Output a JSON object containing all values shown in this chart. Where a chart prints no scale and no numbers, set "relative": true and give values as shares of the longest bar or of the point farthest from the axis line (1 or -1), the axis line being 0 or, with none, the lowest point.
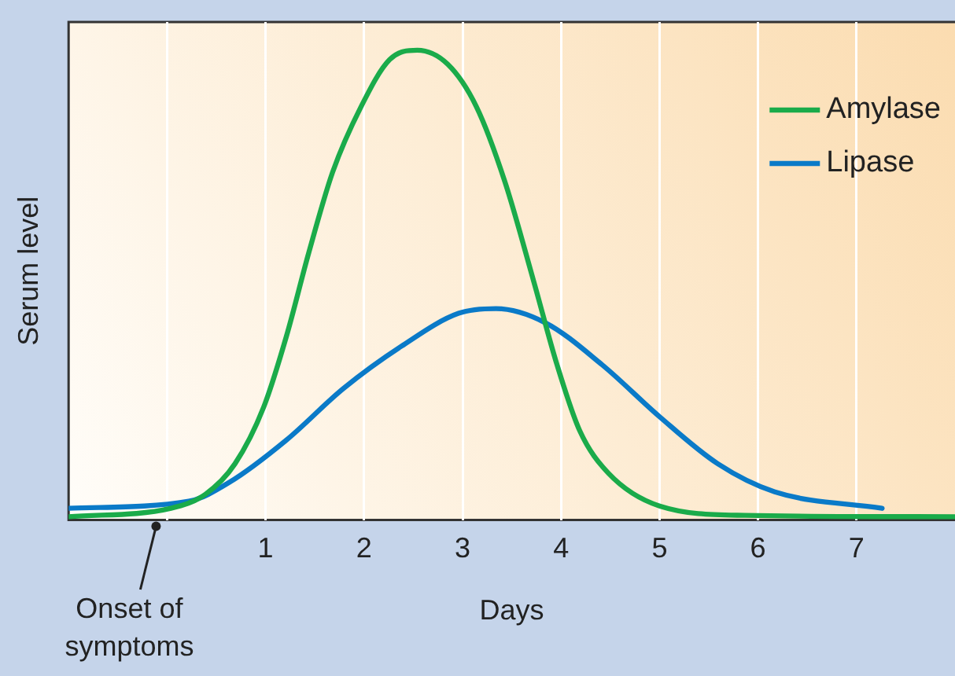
{
  "chart_data": {
    "type": "line",
    "xlabel": "Days",
    "ylabel": "Serum level",
    "relative": true,
    "xlim": [
      -1,
      8
    ],
    "xticks": [
      {
        "value": 0,
        "label": null
      },
      1,
      2,
      3,
      4,
      5,
      6,
      7
    ],
    "grid": "x",
    "legend": "top right",
    "marker": "none",
    "line_style": "solid",
    "annotations": [
      "Onset of symptoms"
    ],
    "series": [
      {
        "name": "Amylase",
        "color": "#1aab4a",
        "x": [
          -1.0,
          0.04,
          0.39,
          0.69,
          0.98,
          1.21,
          1.44,
          1.68,
          1.97,
          2.26,
          2.54,
          2.85,
          3.14,
          3.43,
          3.72,
          3.96,
          4.19,
          4.48,
          5.0,
          5.87,
          8.0
        ],
        "values": [
          0.007,
          0.025,
          0.055,
          0.12,
          0.24,
          0.39,
          0.57,
          0.74,
          0.88,
          0.98,
          1.0,
          0.97,
          0.88,
          0.72,
          0.51,
          0.33,
          0.19,
          0.1,
          0.03,
          0.01,
          0.007
        ]
      },
      {
        "name": "Lipase",
        "color": "#0a7ac8",
        "x": [
          -1.0,
          0.22,
          0.63,
          1.21,
          1.79,
          2.38,
          2.96,
          3.34,
          3.84,
          4.42,
          5.0,
          5.59,
          6.17,
          7.26
        ],
        "values": [
          0.025,
          0.04,
          0.08,
          0.17,
          0.28,
          0.37,
          0.44,
          0.45,
          0.42,
          0.33,
          0.22,
          0.12,
          0.06,
          0.025
        ]
      }
    ]
  }
}
